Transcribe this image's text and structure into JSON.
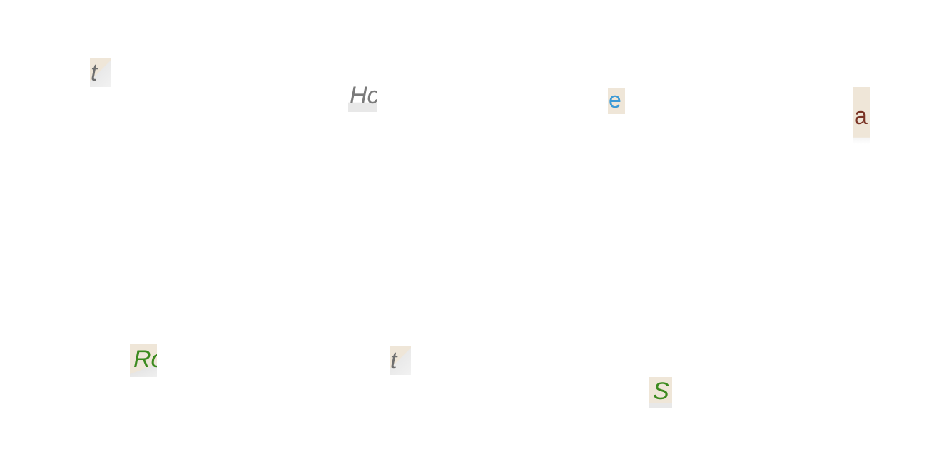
{
  "fragments": [
    {
      "text": "t",
      "color": "#6f6f6f"
    },
    {
      "text": "Hc",
      "color": "#7a7a7a"
    },
    {
      "text": "e",
      "color": "#3c9ad6"
    },
    {
      "text": "a",
      "color": "#7a3426"
    },
    {
      "text": "Rc",
      "color": "#3c8a1f"
    },
    {
      "text": "t",
      "color": "#6f6f6f"
    },
    {
      "text": "S",
      "color": "#3c8a1f"
    }
  ],
  "colors": {
    "background": "#ffffff",
    "tile": "#efe6d8"
  }
}
